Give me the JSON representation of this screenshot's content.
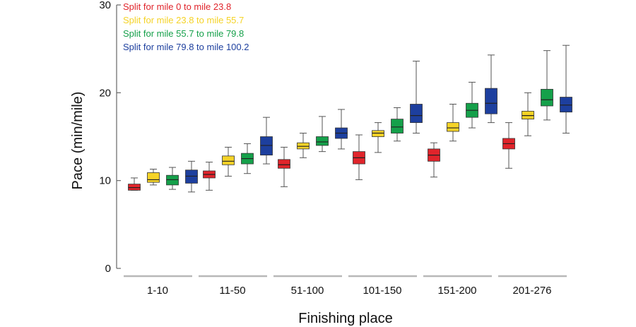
{
  "chart_data": {
    "type": "box",
    "xlabel": "Finishing place",
    "ylabel": "Pace (min/mile)",
    "ylim": [
      0,
      30
    ],
    "yticks": [
      "0",
      "10",
      "20",
      "30"
    ],
    "categories": [
      "1-10",
      "11-50",
      "51-100",
      "101-150",
      "151-200",
      "201-276"
    ],
    "legend_position": "top-left",
    "series": [
      {
        "name": "Split for mile 0 to mile 23.8",
        "color": "#e0242b",
        "boxes": [
          {
            "min": 8.9,
            "q1": 8.9,
            "median": 9.2,
            "q3": 9.6,
            "max": 10.3
          },
          {
            "min": 8.9,
            "q1": 10.3,
            "median": 10.7,
            "q3": 11.1,
            "max": 12.1
          },
          {
            "min": 9.3,
            "q1": 11.4,
            "median": 11.8,
            "q3": 12.4,
            "max": 13.8
          },
          {
            "min": 10.1,
            "q1": 11.9,
            "median": 12.6,
            "q3": 13.3,
            "max": 15.2
          },
          {
            "min": 10.4,
            "q1": 12.2,
            "median": 12.9,
            "q3": 13.6,
            "max": 14.3
          },
          {
            "min": 11.4,
            "q1": 13.6,
            "median": 14.2,
            "q3": 14.8,
            "max": 16.6
          }
        ]
      },
      {
        "name": "Split for mile 23.8 to mile 55.7",
        "color": "#f5d327",
        "boxes": [
          {
            "min": 9.5,
            "q1": 9.8,
            "median": 10.1,
            "q3": 10.9,
            "max": 11.3
          },
          {
            "min": 10.5,
            "q1": 11.8,
            "median": 12.2,
            "q3": 12.8,
            "max": 13.8
          },
          {
            "min": 12.6,
            "q1": 13.6,
            "median": 13.9,
            "q3": 14.3,
            "max": 15.4
          },
          {
            "min": 13.2,
            "q1": 15.0,
            "median": 15.4,
            "q3": 15.7,
            "max": 16.6
          },
          {
            "min": 14.5,
            "q1": 15.6,
            "median": 16.0,
            "q3": 16.6,
            "max": 18.7
          },
          {
            "min": 15.1,
            "q1": 17.0,
            "median": 17.4,
            "q3": 17.9,
            "max": 20.0
          }
        ]
      },
      {
        "name": "Split for mile 55.7 to mile 79.8",
        "color": "#15a04a",
        "boxes": [
          {
            "min": 9.0,
            "q1": 9.5,
            "median": 10.1,
            "q3": 10.6,
            "max": 11.5
          },
          {
            "min": 10.8,
            "q1": 11.9,
            "median": 12.5,
            "q3": 13.1,
            "max": 14.2
          },
          {
            "min": 13.3,
            "q1": 14.0,
            "median": 14.4,
            "q3": 15.0,
            "max": 17.3
          },
          {
            "min": 14.5,
            "q1": 15.4,
            "median": 16.1,
            "q3": 17.0,
            "max": 18.3
          },
          {
            "min": 16.0,
            "q1": 17.2,
            "median": 18.0,
            "q3": 18.8,
            "max": 21.2
          },
          {
            "min": 16.9,
            "q1": 18.5,
            "median": 19.2,
            "q3": 20.4,
            "max": 24.8
          }
        ]
      },
      {
        "name": "Split for mile 79.8 to mile 100.2",
        "color": "#1d3f9e",
        "boxes": [
          {
            "min": 8.7,
            "q1": 9.7,
            "median": 10.5,
            "q3": 11.2,
            "max": 12.2
          },
          {
            "min": 11.9,
            "q1": 12.9,
            "median": 14.0,
            "q3": 15.0,
            "max": 17.2
          },
          {
            "min": 13.6,
            "q1": 14.8,
            "median": 15.4,
            "q3": 16.0,
            "max": 18.1
          },
          {
            "min": 15.4,
            "q1": 16.6,
            "median": 17.4,
            "q3": 18.7,
            "max": 23.6
          },
          {
            "min": 16.6,
            "q1": 17.6,
            "median": 18.8,
            "q3": 20.5,
            "max": 24.3
          },
          {
            "min": 15.4,
            "q1": 17.8,
            "median": 18.6,
            "q3": 19.5,
            "max": 25.4
          }
        ]
      }
    ]
  }
}
